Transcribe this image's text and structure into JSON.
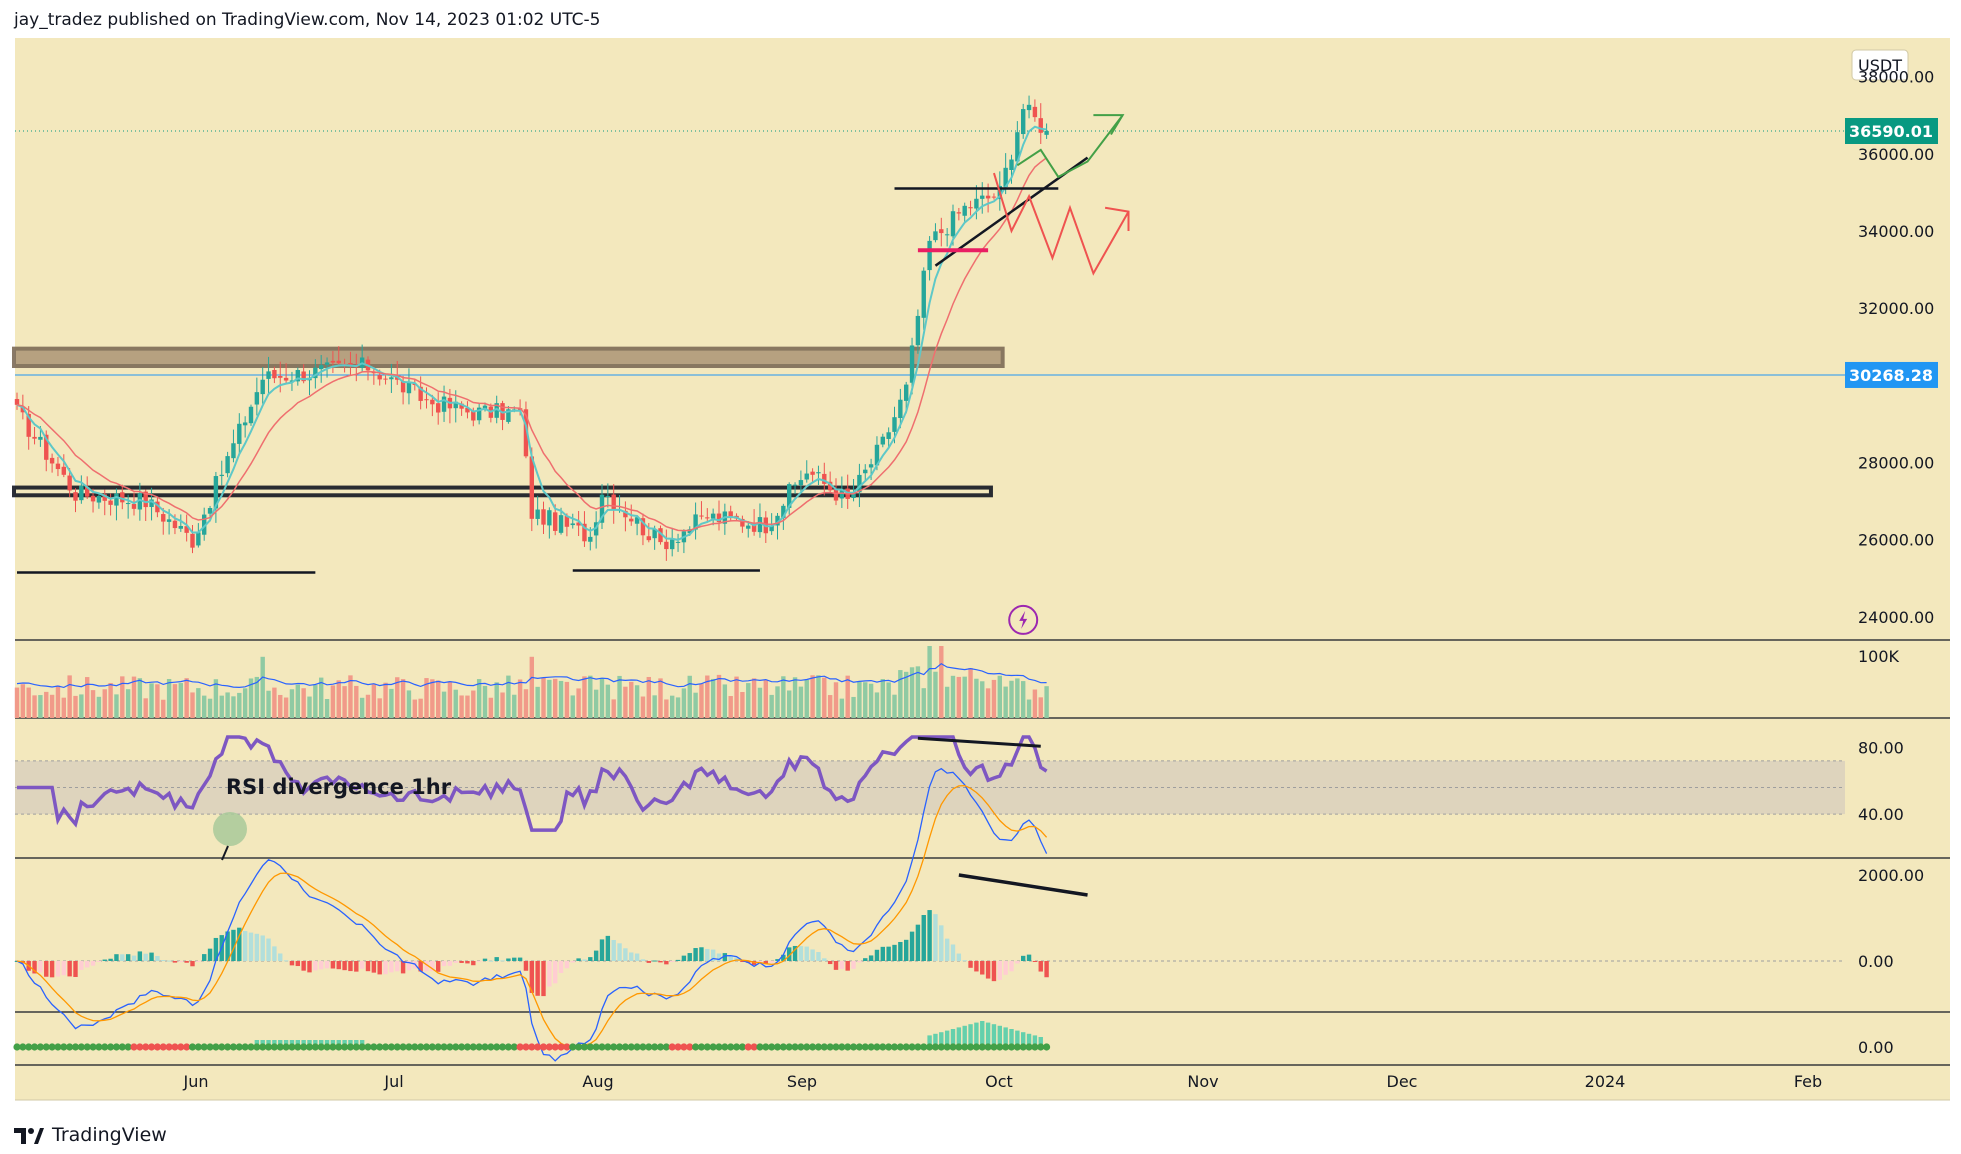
{
  "header": {
    "published_by": "jay_tradez published on TradingView.com, Nov 14, 2023 01:02 UTC-5"
  },
  "footer": {
    "brand": "TradingView",
    "logo_icon": "tradingview-logo-icon"
  },
  "colors": {
    "background": "#f3e8bd",
    "up": "#26a69a",
    "down": "#ef5350",
    "ema_fast": "#5ec8c8",
    "ema_slow": "#ef6f6f",
    "rsi": "#7e57c2",
    "macd": "#2962ff",
    "signal": "#ff9800",
    "last_price_tag": "#089981",
    "level_tag": "#2196f3"
  },
  "chart_data": {
    "type": "candlestick",
    "symbol_currency": "USDT",
    "x_ticks": [
      "Jun",
      "Jul",
      "Aug",
      "Sep",
      "Oct",
      "Nov",
      "Dec",
      "2024",
      "Feb"
    ],
    "price_axis": {
      "range": [
        23400,
        39000
      ],
      "ticks": [
        "38000.00",
        "36000.00",
        "34000.00",
        "32000.00",
        "28000.00",
        "26000.00",
        "24000.00"
      ]
    },
    "last_price": "36590.01",
    "horizontal_level": "30268.28",
    "volume_axis": {
      "ticks": [
        "100K"
      ]
    },
    "rsi_axis": {
      "ticks": [
        "80.00",
        "40.00"
      ]
    },
    "rsi_annotation": "RSI divergence 1hr",
    "macd_axis": {
      "ticks": [
        "2000.00",
        "0.00"
      ]
    },
    "osc_axis": {
      "ticks": [
        "0.00"
      ]
    },
    "anchors": [
      {
        "t": 0,
        "p": 29300
      },
      {
        "t": 10,
        "p": 27200
      },
      {
        "t": 22,
        "p": 27000
      },
      {
        "t": 30,
        "p": 26000
      },
      {
        "t": 42,
        "p": 30200
      },
      {
        "t": 60,
        "p": 30500
      },
      {
        "t": 70,
        "p": 29600
      },
      {
        "t": 78,
        "p": 29300
      },
      {
        "t": 86,
        "p": 29300
      },
      {
        "t": 88,
        "p": 26700
      },
      {
        "t": 98,
        "p": 26100
      },
      {
        "t": 100,
        "p": 27300
      },
      {
        "t": 110,
        "p": 25900
      },
      {
        "t": 118,
        "p": 26600
      },
      {
        "t": 128,
        "p": 26400
      },
      {
        "t": 135,
        "p": 27800
      },
      {
        "t": 142,
        "p": 27000
      },
      {
        "t": 148,
        "p": 28500
      },
      {
        "t": 152,
        "p": 29900
      },
      {
        "t": 156,
        "p": 33700
      },
      {
        "t": 162,
        "p": 34600
      },
      {
        "t": 168,
        "p": 35000
      },
      {
        "t": 172,
        "p": 37200
      },
      {
        "t": 176,
        "p": 36590
      }
    ],
    "overlays": {
      "zones": [
        {
          "name": "resistance-zone",
          "from": 30500,
          "to": 30950,
          "t0": 0,
          "t1": 169
        },
        {
          "name": "support-zone",
          "from": 27150,
          "to": 27350,
          "t0": 0,
          "t1": 167
        }
      ],
      "lines": [
        {
          "name": "support-line-june",
          "t0": 0,
          "p0": 25150,
          "t1": 51,
          "p1": 25150
        },
        {
          "name": "support-line-sept",
          "t0": 95,
          "p0": 25200,
          "t1": 127,
          "p1": 25200
        },
        {
          "name": "breakout-line",
          "t0": 150,
          "p0": 35100,
          "t1": 178,
          "p1": 35100
        },
        {
          "name": "ascending-trendline",
          "t0": 157,
          "p0": 33100,
          "t1": 183,
          "p1": 35900
        }
      ]
    }
  }
}
